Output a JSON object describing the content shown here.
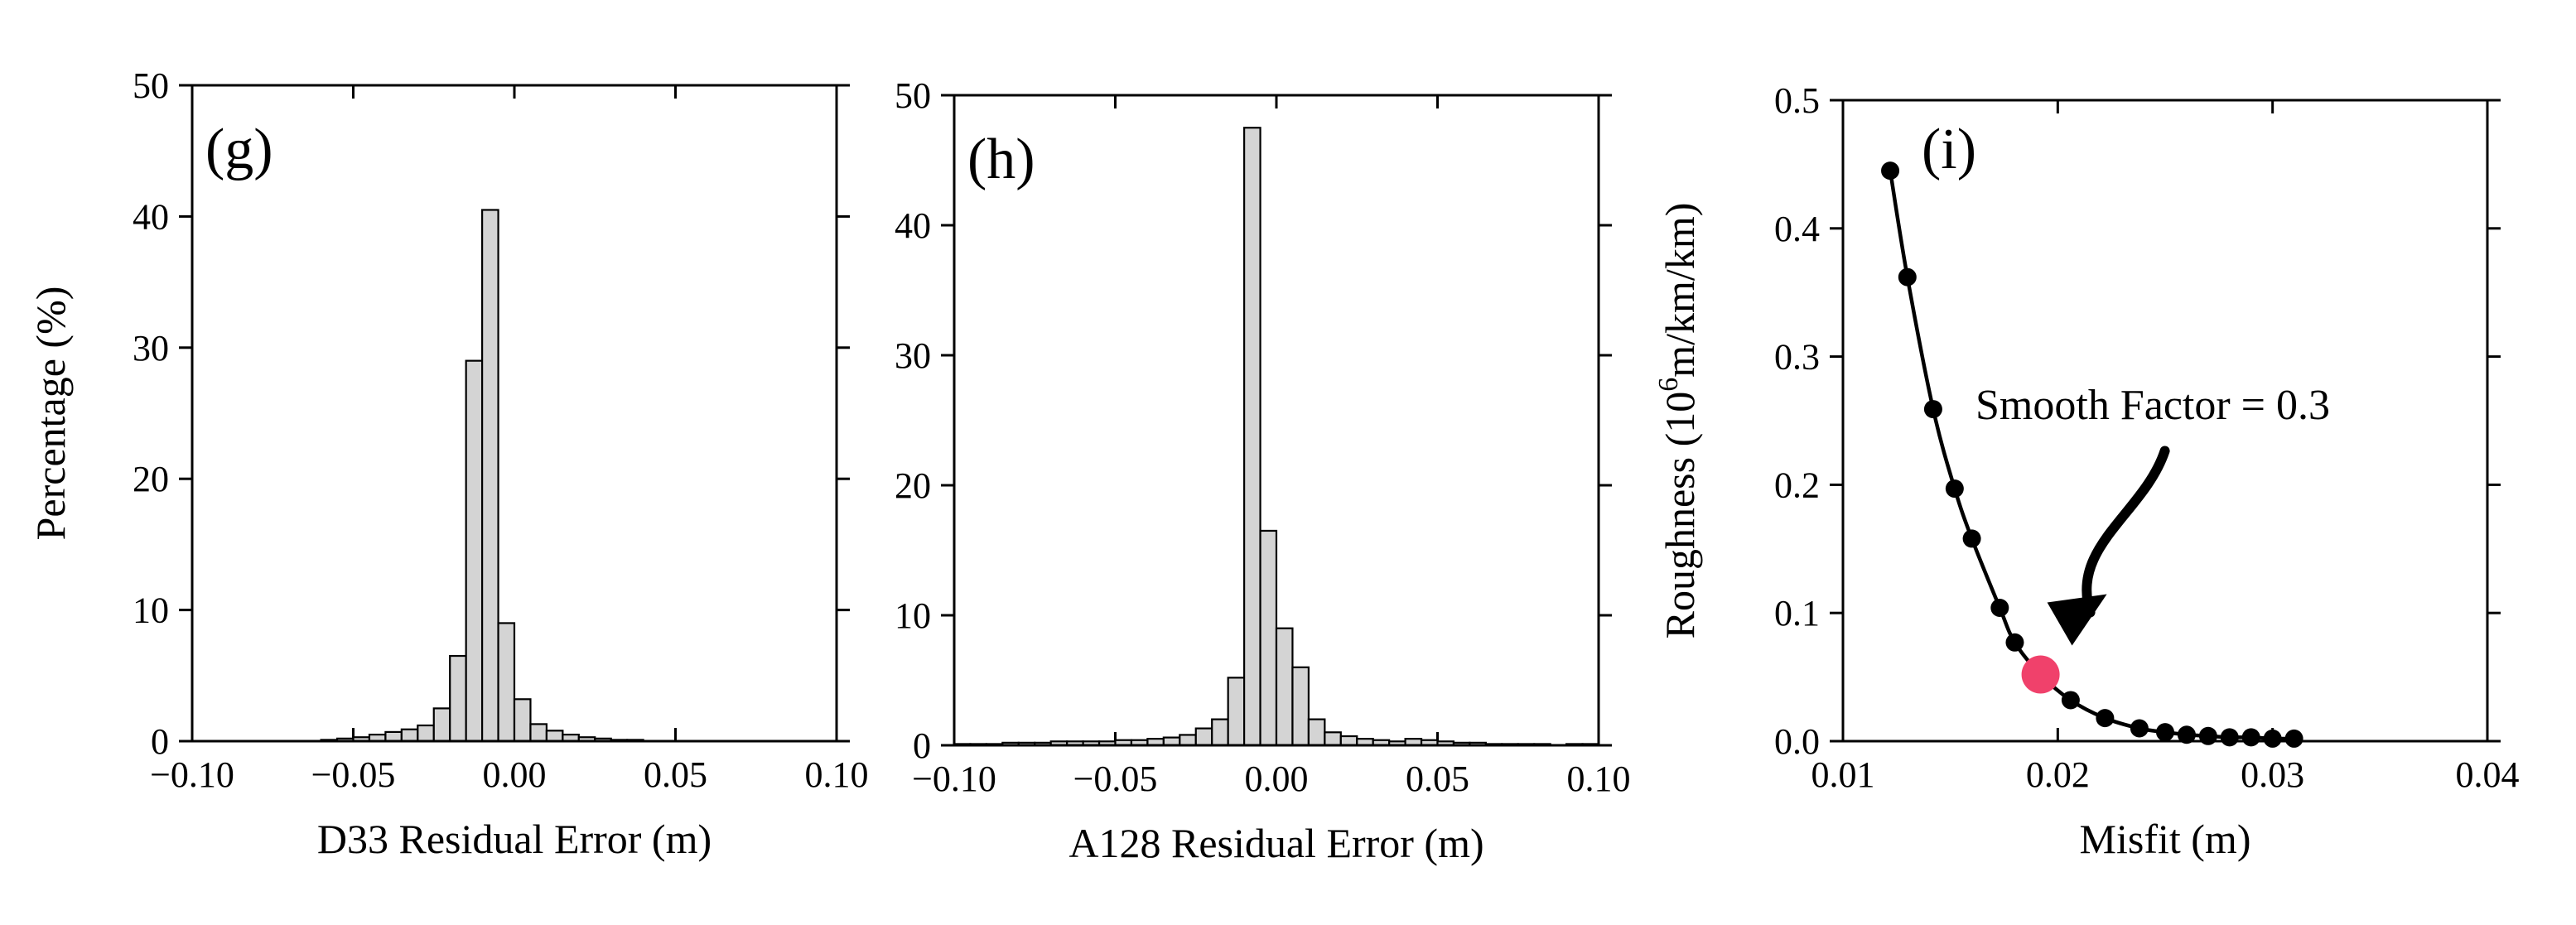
{
  "chart_data": [
    {
      "type": "bar",
      "panel_label": "(g)",
      "xlabel": "D33 Residual Error (m)",
      "ylabel": "Percentage (%)",
      "xlim": [
        -0.1,
        0.1
      ],
      "ylim": [
        0,
        50
      ],
      "xticks": [
        "−0.10",
        "−0.05",
        "0.00",
        "0.05",
        "0.10"
      ],
      "yticks": [
        "0",
        "10",
        "20",
        "30",
        "40",
        "50"
      ],
      "tick_sides": {
        "left_labels": true,
        "right_labels": false
      },
      "bin_width": 0.005,
      "bin_start": -0.1,
      "values": [
        0.0,
        0.0,
        0.0,
        0.0,
        0.0,
        0.0,
        0.0,
        0.0,
        0.1,
        0.2,
        0.3,
        0.5,
        0.7,
        0.9,
        1.2,
        2.5,
        6.5,
        29.0,
        40.5,
        9.0,
        3.2,
        1.3,
        0.8,
        0.5,
        0.3,
        0.2,
        0.1,
        0.1,
        0.0,
        0.0,
        0.0,
        0.0,
        0.0,
        0.0,
        0.0,
        0.0,
        0.0,
        0.0,
        0.0,
        0.0
      ]
    },
    {
      "type": "bar",
      "panel_label": "(h)",
      "xlabel": "A128 Residual Error (m)",
      "ylabel": "",
      "xlim": [
        -0.1,
        0.1
      ],
      "ylim": [
        0,
        50
      ],
      "xticks": [
        "−0.10",
        "−0.05",
        "0.00",
        "0.05",
        "0.10"
      ],
      "yticks": [
        "0",
        "10",
        "20",
        "30",
        "40",
        "50"
      ],
      "tick_sides": {
        "left_labels": true,
        "right_labels": false
      },
      "bin_width": 0.005,
      "bin_start": -0.1,
      "values": [
        0.1,
        0.1,
        0.1,
        0.2,
        0.2,
        0.2,
        0.3,
        0.3,
        0.3,
        0.3,
        0.4,
        0.4,
        0.5,
        0.6,
        0.8,
        1.3,
        2.0,
        5.2,
        47.5,
        16.5,
        9.0,
        6.0,
        2.0,
        1.0,
        0.7,
        0.5,
        0.4,
        0.3,
        0.5,
        0.4,
        0.3,
        0.2,
        0.2,
        0.1,
        0.1,
        0.1,
        0.1,
        0.0,
        0.1,
        0.1
      ]
    },
    {
      "type": "line",
      "panel_label": "(i)",
      "xlabel": "Misfit (m)",
      "ylabel_parts": [
        "Roughness (10",
        "6",
        "m/km/km)"
      ],
      "xlim": [
        0.01,
        0.04
      ],
      "ylim": [
        0,
        0.5
      ],
      "xticks": [
        "0.01",
        "0.02",
        "0.03",
        "0.04"
      ],
      "yticks": [
        "0.0",
        "0.1",
        "0.2",
        "0.3",
        "0.4",
        "0.5"
      ],
      "series": [
        {
          "x": [
            0.0122,
            0.013,
            0.0142,
            0.0152,
            0.016,
            0.0173,
            0.018,
            0.0192,
            0.0206,
            0.0222,
            0.0238,
            0.025,
            0.026,
            0.027,
            0.028,
            0.029,
            0.03,
            0.031
          ],
          "y": [
            0.445,
            0.362,
            0.259,
            0.197,
            0.158,
            0.104,
            0.077,
            0.052,
            0.032,
            0.018,
            0.01,
            0.007,
            0.005,
            0.004,
            0.003,
            0.003,
            0.002,
            0.002
          ]
        }
      ],
      "highlight": {
        "x": 0.0192,
        "y": 0.052,
        "color": "#f0416b"
      },
      "annotation": "Smooth Factor = 0.3"
    }
  ]
}
